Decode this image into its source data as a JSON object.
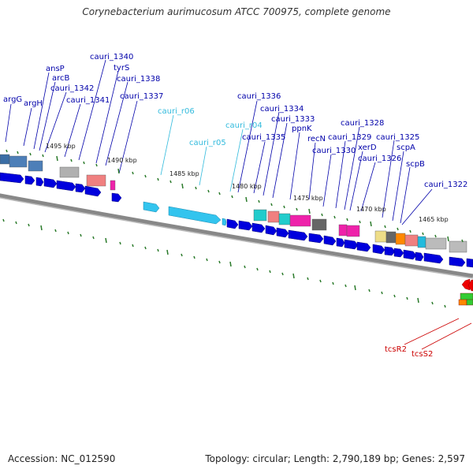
{
  "title": "Corynebacterium aurimucosum ATCC 700975, complete genome",
  "footer": {
    "accession": "Accession: NC_012590",
    "topology": "Topology: circular; Length: 2,790,189 bp; Genes: 2,597"
  },
  "colors": {
    "gene_blue": "#0000dd",
    "rna_cyan": "#33c4ee",
    "label_blue": "#0000aa",
    "label_cyan": "#33bbdd",
    "label_red": "#cc0000",
    "tick_green": "#2a7a2a",
    "backbone": "#888888"
  },
  "kbp_ticks": [
    "1495 kbp",
    "1490 kbp",
    "1485 kbp",
    "1480 kbp",
    "1475 kbp",
    "1470 kbp",
    "1465 kbp"
  ],
  "gene_labels": [
    {
      "text": "argG",
      "kind": "gene"
    },
    {
      "text": "argH",
      "kind": "gene"
    },
    {
      "text": "ansP",
      "kind": "gene"
    },
    {
      "text": "arcB",
      "kind": "gene"
    },
    {
      "text": "cauri_1342",
      "kind": "gene"
    },
    {
      "text": "cauri_1341",
      "kind": "gene"
    },
    {
      "text": "cauri_1340",
      "kind": "gene"
    },
    {
      "text": "tyrS",
      "kind": "gene"
    },
    {
      "text": "cauri_1338",
      "kind": "gene"
    },
    {
      "text": "cauri_1337",
      "kind": "gene"
    },
    {
      "text": "cauri_r06",
      "kind": "rna"
    },
    {
      "text": "cauri_r05",
      "kind": "rna"
    },
    {
      "text": "cauri_r04",
      "kind": "rna"
    },
    {
      "text": "cauri_1336",
      "kind": "gene"
    },
    {
      "text": "cauri_1335",
      "kind": "gene"
    },
    {
      "text": "cauri_1334",
      "kind": "gene"
    },
    {
      "text": "cauri_1333",
      "kind": "gene"
    },
    {
      "text": "ppnK",
      "kind": "gene"
    },
    {
      "text": "recN",
      "kind": "gene"
    },
    {
      "text": "cauri_1330",
      "kind": "gene"
    },
    {
      "text": "cauri_1329",
      "kind": "gene"
    },
    {
      "text": "cauri_1328",
      "kind": "gene"
    },
    {
      "text": "xerD",
      "kind": "gene"
    },
    {
      "text": "cauri_1326",
      "kind": "gene"
    },
    {
      "text": "cauri_1325",
      "kind": "gene"
    },
    {
      "text": "scpA",
      "kind": "gene"
    },
    {
      "text": "scpB",
      "kind": "gene"
    },
    {
      "text": "cauri_1322",
      "kind": "gene"
    },
    {
      "text": "tcsR2",
      "kind": "regulator"
    },
    {
      "text": "tcsS2",
      "kind": "regulator"
    }
  ]
}
